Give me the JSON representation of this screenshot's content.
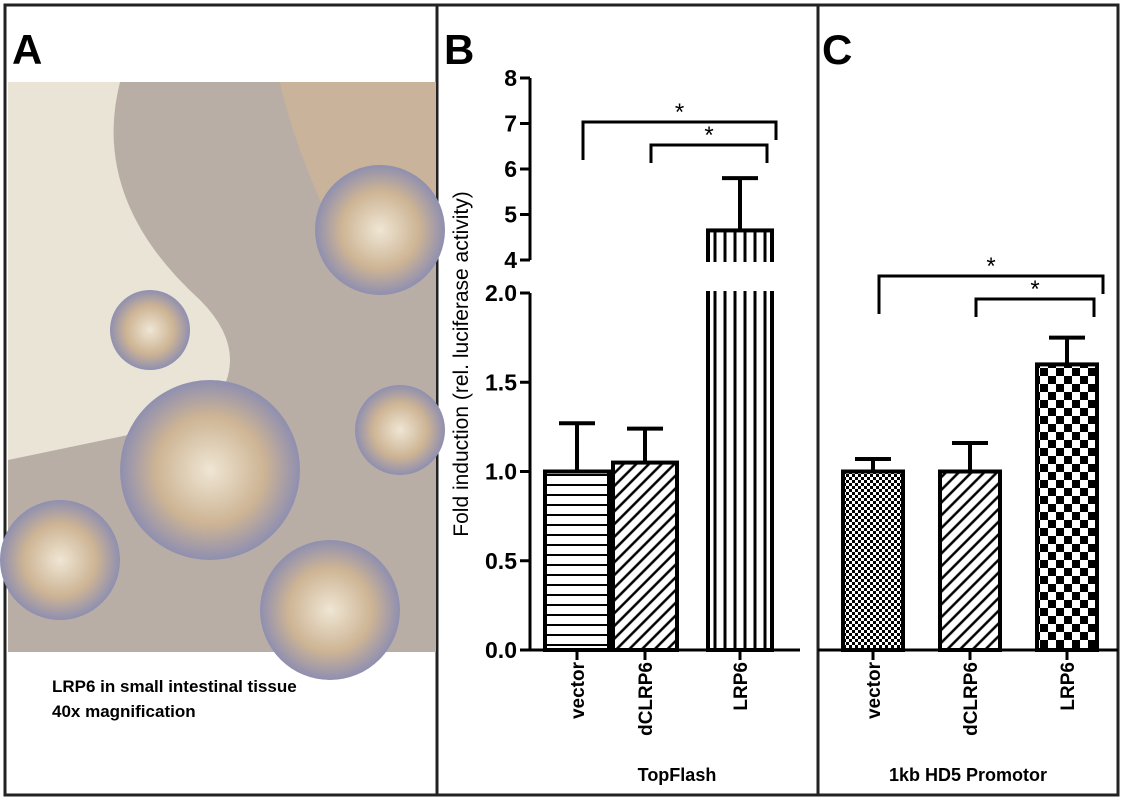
{
  "panel_a": {
    "label": "A",
    "caption_lines": [
      "LRP6 in small intestinal tissue",
      "40x magnification"
    ]
  },
  "chart_data": [
    {
      "type": "bar",
      "panel_label": "B",
      "x_label": "TopFlash",
      "y_label": "Fold induction (rel. luciferase activity)",
      "categories": [
        "vector",
        "dCLRP6",
        "LRP6"
      ],
      "values": [
        1.0,
        1.05,
        4.65
      ],
      "errors": [
        0.27,
        0.19,
        1.15
      ],
      "patterns": [
        "horizontal",
        "diagonal",
        "vertical"
      ],
      "color": "#000000",
      "ylim": [
        0,
        8
      ],
      "ybreak": [
        2,
        4
      ],
      "yticks": [
        {
          "value": 0,
          "label": "0.0"
        },
        {
          "value": 0.5,
          "label": "0.5"
        },
        {
          "value": 1,
          "label": "1.0"
        },
        {
          "value": 1.5,
          "label": "1.5"
        },
        {
          "value": 2,
          "label": "2.0"
        },
        4,
        5,
        6,
        7,
        8
      ],
      "annotations": [
        {
          "label": "*",
          "between": [
            "vector",
            "LRP6"
          ]
        },
        {
          "label": "*",
          "between": [
            "dCLRP6",
            "LRP6"
          ]
        }
      ]
    },
    {
      "type": "bar",
      "panel_label": "C",
      "x_label": "1kb HD5 Promotor",
      "categories": [
        "vector",
        "dCLRP6",
        "LRP6"
      ],
      "values": [
        1.0,
        1.0,
        1.6
      ],
      "errors": [
        0.07,
        0.16,
        0.15
      ],
      "patterns": [
        "fine-checker",
        "diagonal",
        "checker"
      ],
      "color": "#000000",
      "ylim": [
        0,
        8
      ],
      "ybreak": [
        2,
        4
      ],
      "annotations": [
        {
          "label": "*",
          "between": [
            "vector",
            "LRP6"
          ]
        },
        {
          "label": "*",
          "between": [
            "dCLRP6",
            "LRP6"
          ]
        }
      ]
    }
  ]
}
